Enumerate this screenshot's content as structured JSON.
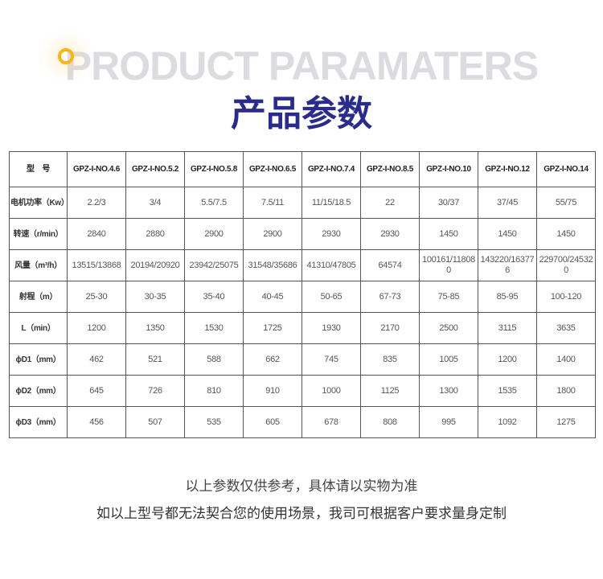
{
  "header": {
    "bg_text": "PRODUCT PARAMATERS",
    "title": "产品参数"
  },
  "table": {
    "columns": [
      "型　号",
      "GPZ-I-NO.4.6",
      "GPZ-I-NO.5.2",
      "GPZ-I-NO.5.8",
      "GPZ-I-NO.6.5",
      "GPZ-I-NO.7.4",
      "GPZ-I-NO.8.5",
      "GPZ-I-NO.10",
      "GPZ-I-NO.12",
      "GPZ-I-NO.14"
    ],
    "rows": [
      [
        "电机功率（Kw）",
        "2.2/3",
        "3/4",
        "5.5/7.5",
        "7.5/11",
        "11/15/18.5",
        "22",
        "30/37",
        "37/45",
        "55/75"
      ],
      [
        "转速（r/min）",
        "2840",
        "2880",
        "2900",
        "2900",
        "2930",
        "2930",
        "1450",
        "1450",
        "1450"
      ],
      [
        "风量（m³/h）",
        "13515/13868",
        "20194/20920",
        "23942/25075",
        "31548/35686",
        "41310/47805",
        "64574",
        "100161/118080",
        "143220/163776",
        "229700/245320"
      ],
      [
        "射程（m）",
        "25-30",
        "30-35",
        "35-40",
        "40-45",
        "50-65",
        "67-73",
        "75-85",
        "85-95",
        "100-120"
      ],
      [
        "L（min）",
        "1200",
        "1350",
        "1530",
        "1725",
        "1930",
        "2170",
        "2500",
        "3115",
        "3635"
      ],
      [
        "ϕD1（mm）",
        "462",
        "521",
        "588",
        "662",
        "745",
        "835",
        "1005",
        "1200",
        "1400"
      ],
      [
        "ϕD2（mm）",
        "645",
        "726",
        "810",
        "910",
        "1000",
        "1125",
        "1300",
        "1535",
        "1800"
      ],
      [
        "ϕD3（mm）",
        "456",
        "507",
        "535",
        "605",
        "678",
        "808",
        "995",
        "1092",
        "1275"
      ]
    ]
  },
  "notes": [
    "以上参数仅供参考，具体请以实物为准",
    "如以上型号都无法契合您的使用场景，我司可根据客户要求量身定制"
  ]
}
